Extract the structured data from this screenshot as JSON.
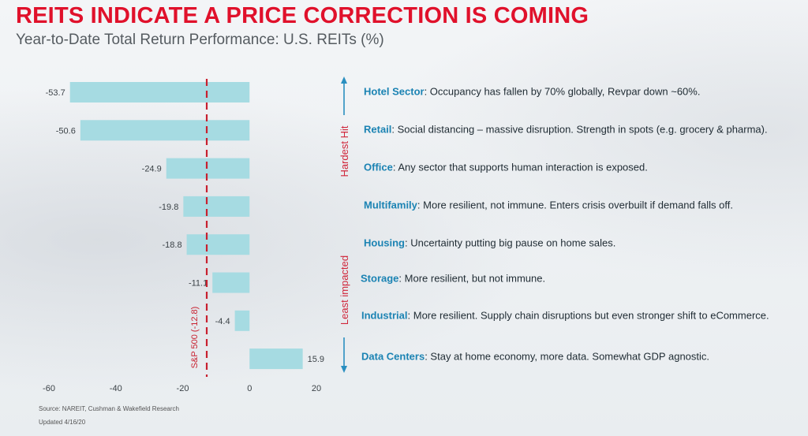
{
  "title": "REITS INDICATE A PRICE CORRECTION IS COMING",
  "subtitle": "Year-to-Date Total Return Performance: U.S. REITs (%)",
  "chart_data": {
    "type": "bar",
    "orientation": "horizontal",
    "categories": [
      "Hotel Sector",
      "Retail",
      "Office",
      "Multifamily",
      "Housing",
      "Storage",
      "Industrial",
      "Data Centers"
    ],
    "values": [
      -53.7,
      -50.6,
      -24.9,
      -19.8,
      -18.8,
      -11.1,
      -4.4,
      15.9
    ],
    "value_labels": [
      "-53.7",
      "-50.6",
      "-24.9",
      "-19.8",
      "-18.8",
      "-11.1",
      "-4.4",
      "15.9"
    ],
    "xlim": [
      -60,
      20
    ],
    "xticks": [
      -60,
      -40,
      -20,
      0,
      20
    ],
    "bar_color": "#a6dbe2",
    "reference_line": {
      "value": -12.8,
      "label": "S&P 500 (-12.8)",
      "color": "#c8202f"
    },
    "arrow_labels": {
      "top": "Hardest Hit",
      "bottom": "Least impacted"
    },
    "arrow_color": "#2a8fc0",
    "arrow_label_color": "#d0263a"
  },
  "notes": [
    {
      "name": "Hotel Sector",
      "text": ": Occupancy has fallen by 70% globally, Revpar down ~60%."
    },
    {
      "name": "Retail",
      "text": ": Social distancing – massive disruption. Strength in spots (e.g. grocery & pharma)."
    },
    {
      "name": "Office",
      "text": ": Any sector that supports human interaction is exposed."
    },
    {
      "name": "Multifamily",
      "text": ": More resilient, not immune. Enters crisis overbuilt if demand falls off."
    },
    {
      "name": "Housing",
      "text": ": Uncertainty putting big pause on home sales."
    },
    {
      "name": "Storage",
      "text": ": More resilient, but not immune."
    },
    {
      "name": "Industrial",
      "text": ": More resilient. Supply chain disruptions but even stronger shift to eCommerce."
    },
    {
      "name": "Data Centers",
      "text": ": Stay at home economy, more data. Somewhat GDP agnostic."
    }
  ],
  "footer": {
    "source": "Source: NAREIT, Cushman & Wakefield Research",
    "updated": "Updated 4/16/20"
  }
}
